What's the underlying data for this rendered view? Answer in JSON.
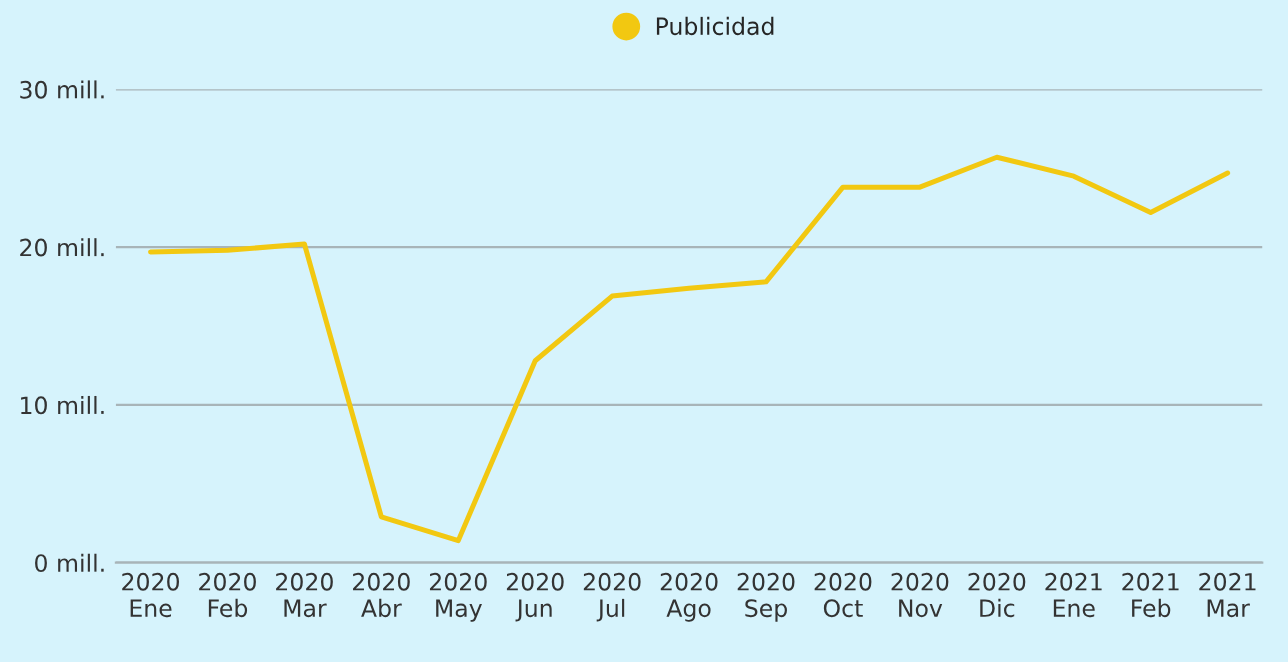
{
  "chart_data": {
    "type": "line",
    "categories": [
      "2020\nEne",
      "2020\nFeb",
      "2020\nMar",
      "2020\nAbr",
      "2020\nMay",
      "2020\nJun",
      "2020\nJul",
      "2020\nAgo",
      "2020\nSep",
      "2020\nOct",
      "2020\nNov",
      "2020\nDic",
      "2021\nEne",
      "2021\nFeb",
      "2021\nMar"
    ],
    "series": [
      {
        "name": "Publicidad",
        "color": "#f2c811",
        "values": [
          19.7,
          19.8,
          20.2,
          2.9,
          1.4,
          12.8,
          16.9,
          17.4,
          17.8,
          23.8,
          23.8,
          25.7,
          24.5,
          22.2,
          24.7
        ]
      }
    ],
    "ylim": [
      0,
      30
    ],
    "yticks": [
      {
        "value": 0,
        "label": "0 mill."
      },
      {
        "value": 10,
        "label": "10 mill."
      },
      {
        "value": 20,
        "label": "20 mill."
      },
      {
        "value": 30,
        "label": "30 mill."
      }
    ],
    "grid": "y",
    "legend": "top",
    "marker": "none",
    "line_style": "solid"
  }
}
